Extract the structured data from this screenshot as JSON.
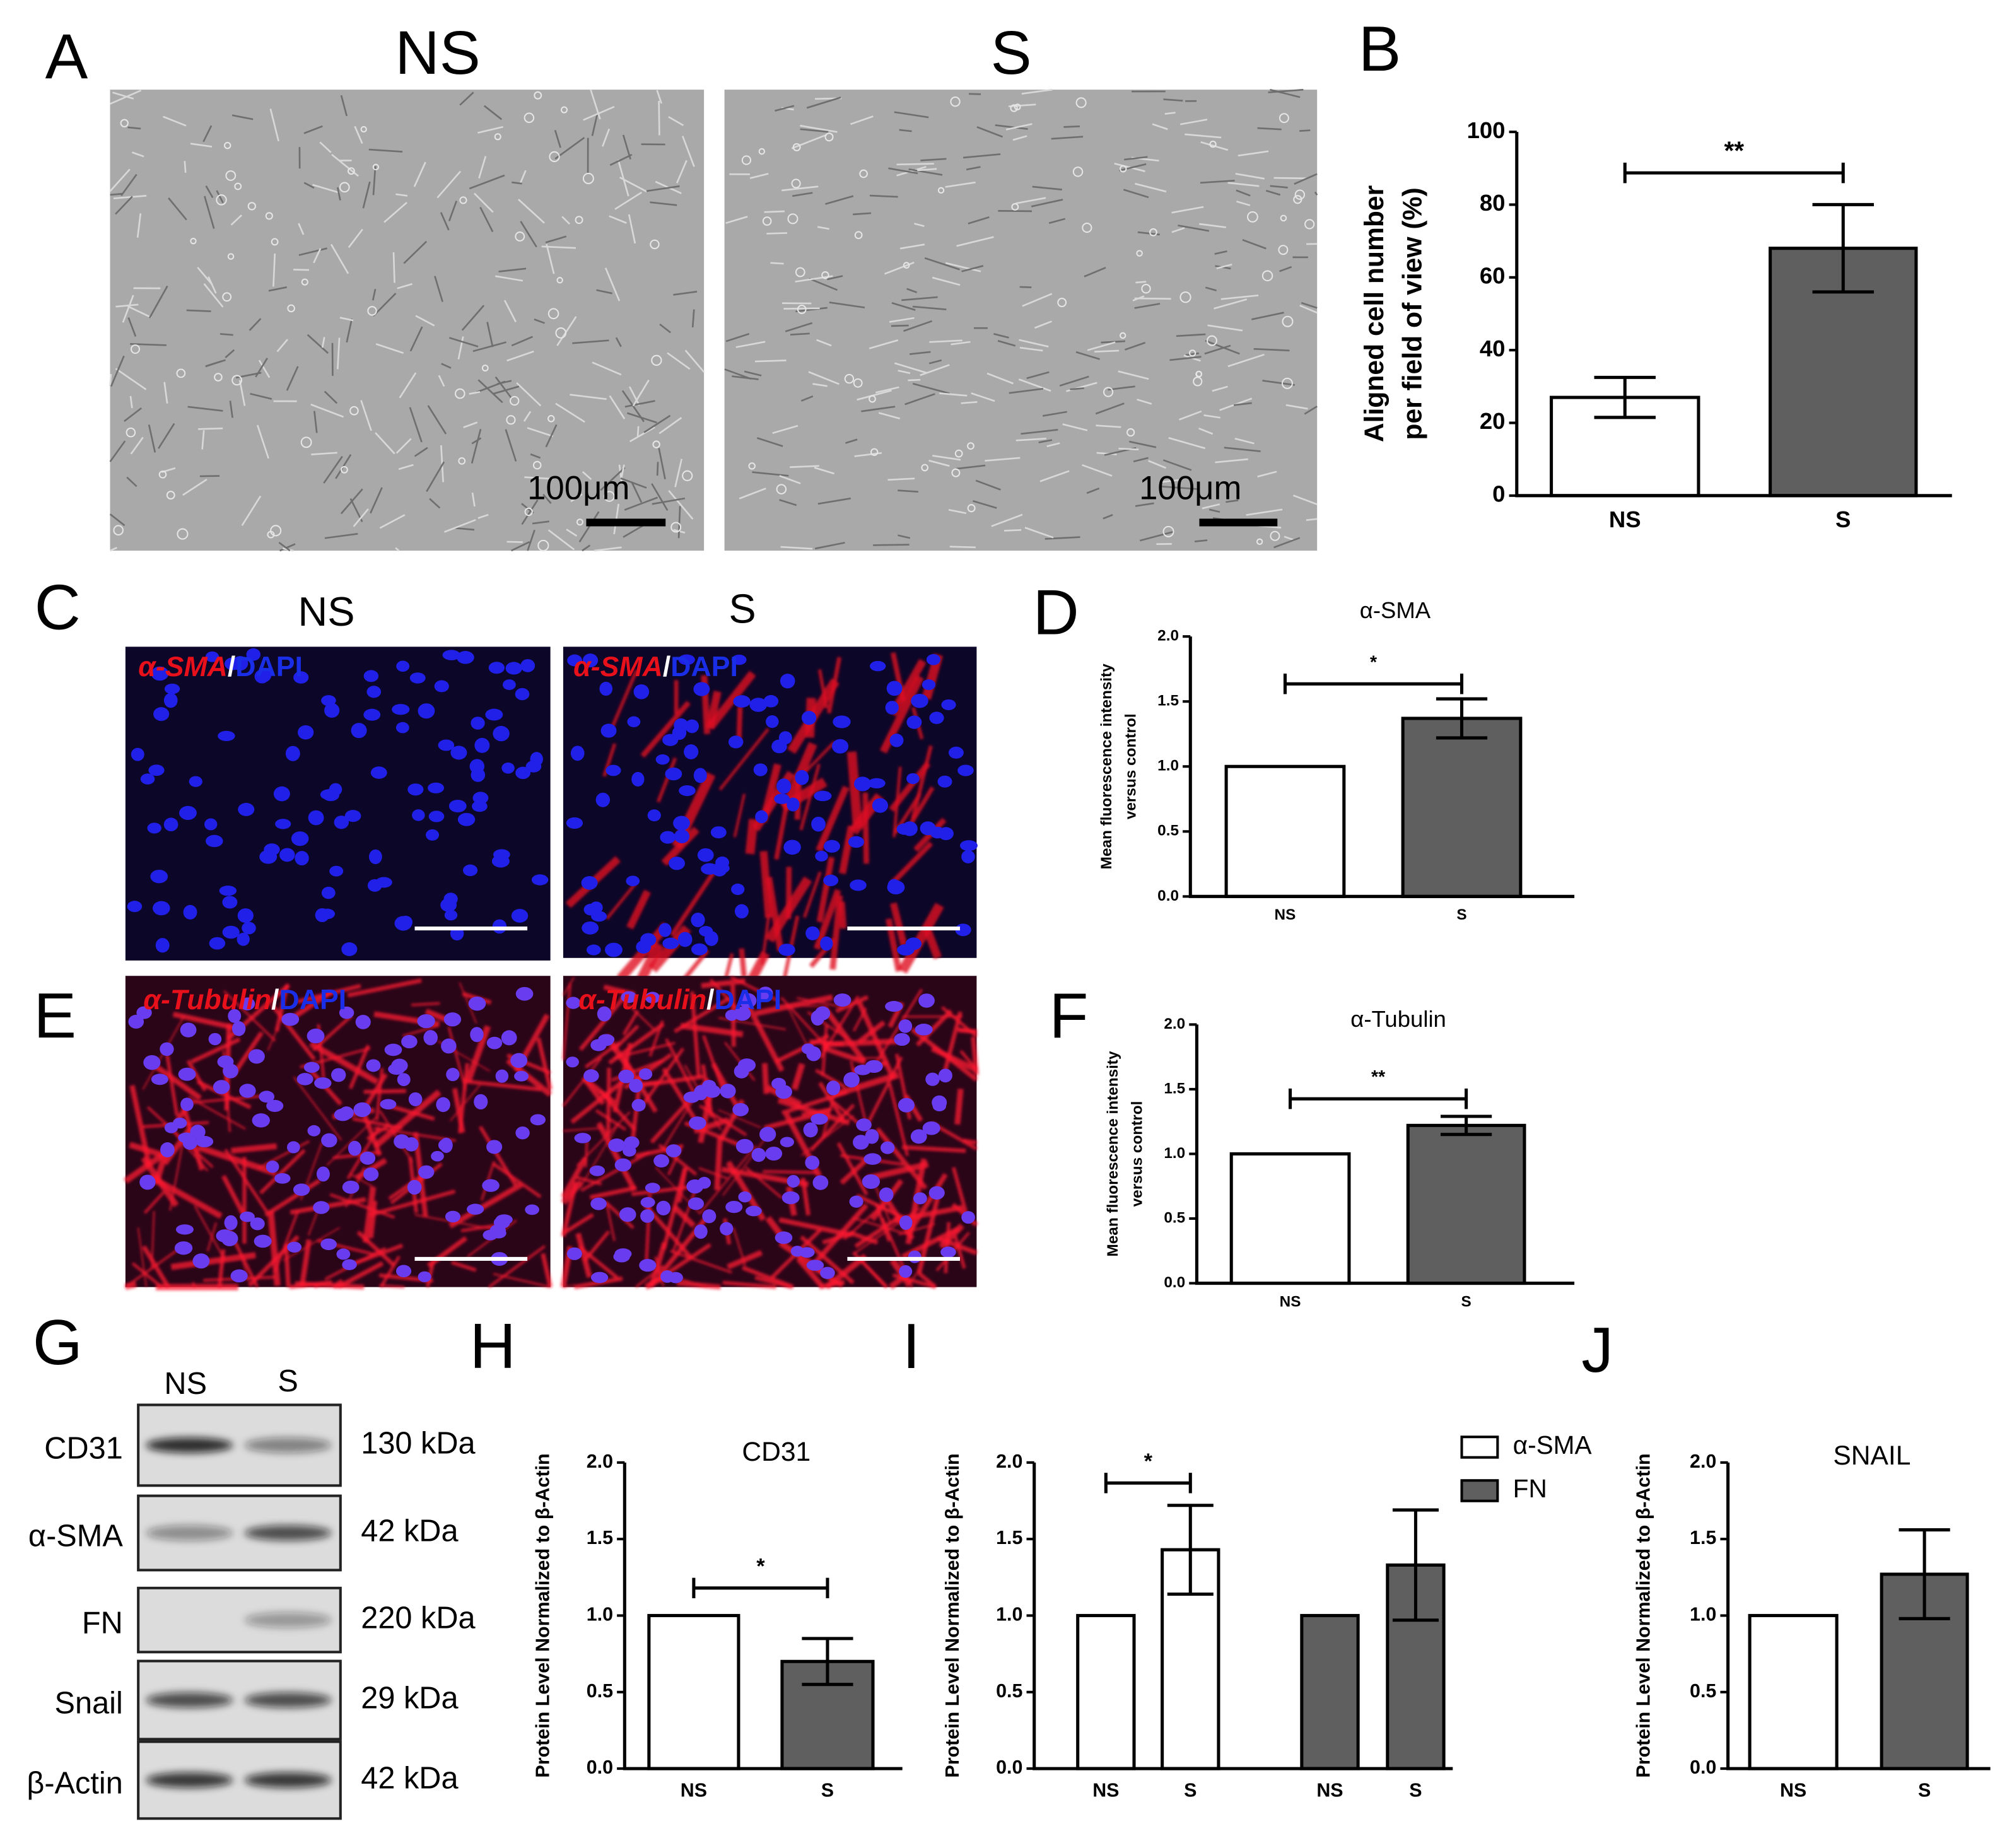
{
  "panel_labels": [
    "A",
    "B",
    "C",
    "D",
    "E",
    "F",
    "G",
    "H",
    "I",
    "J"
  ],
  "micrographs": {
    "A": {
      "titles": [
        "NS",
        "S"
      ],
      "scale": "100μm"
    },
    "C": {
      "titles": [
        "NS",
        "S"
      ],
      "stain": [
        "α-SMA",
        "/",
        "DAPI"
      ]
    },
    "E": {
      "stain": [
        "α-Tubulin",
        "/",
        "DAPI"
      ]
    }
  },
  "blot": {
    "lanes": [
      "NS",
      "S"
    ],
    "rows": [
      {
        "protein": "CD31",
        "size": "130 kDa"
      },
      {
        "protein": "α-SMA",
        "size": "42 kDa"
      },
      {
        "protein": "FN",
        "size": "220 kDa"
      },
      {
        "protein": "Snail",
        "size": "29 kDa"
      },
      {
        "protein": "β-Actin",
        "size": "42 kDa"
      }
    ]
  },
  "chart_data": [
    {
      "type": "bar",
      "categories": [
        "NS",
        "S"
      ],
      "values": [
        27,
        68
      ],
      "errors": [
        5.5,
        12
      ],
      "colors": [
        "#ffffff",
        "#5f5f5f"
      ],
      "ylabel": [
        "Aligned cell number",
        "per field of view (%)"
      ],
      "ylim": [
        0,
        100
      ],
      "yticks": [
        0,
        20,
        40,
        60,
        80,
        100
      ],
      "significance": "**"
    },
    {
      "type": "bar",
      "title": "α-SMA",
      "categories": [
        "NS",
        "S"
      ],
      "values": [
        1.0,
        1.37
      ],
      "errors": [
        null,
        0.15
      ],
      "colors": [
        "#ffffff",
        "#5f5f5f"
      ],
      "ylabel": [
        "Mean fluorescence intensity",
        "versus control"
      ],
      "ylim": [
        0,
        2
      ],
      "yticks": [
        {
          "value": 0,
          "label": "0.0"
        },
        {
          "value": 0.5,
          "label": "0.5"
        },
        {
          "value": 1,
          "label": "1.0"
        },
        {
          "value": 1.5,
          "label": "1.5"
        },
        {
          "value": 2,
          "label": "2.0"
        }
      ],
      "significance": "*"
    },
    {
      "type": "bar",
      "title": "α-Tubulin",
      "categories": [
        "NS",
        "S"
      ],
      "values": [
        1.0,
        1.22
      ],
      "errors": [
        null,
        0.07
      ],
      "colors": [
        "#ffffff",
        "#5f5f5f"
      ],
      "ylabel": [
        "Mean fluorescence intensity",
        "versus control"
      ],
      "ylim": [
        0,
        2
      ],
      "yticks": [
        {
          "value": 0,
          "label": "0.0"
        },
        {
          "value": 0.5,
          "label": "0.5"
        },
        {
          "value": 1,
          "label": "1.0"
        },
        {
          "value": 1.5,
          "label": "1.5"
        },
        {
          "value": 2,
          "label": "2.0"
        }
      ],
      "significance": "**"
    },
    {
      "type": "bar",
      "title": "CD31",
      "categories": [
        "NS",
        "S"
      ],
      "values": [
        1.0,
        0.7
      ],
      "errors": [
        null,
        0.15
      ],
      "colors": [
        "#ffffff",
        "#5f5f5f"
      ],
      "ylabel": [
        "Protein Level Normalized to β-Actin"
      ],
      "ylim": [
        0,
        2
      ],
      "yticks": [
        {
          "value": 0,
          "label": "0.0"
        },
        {
          "value": 0.5,
          "label": "0.5"
        },
        {
          "value": 1,
          "label": "1.0"
        },
        {
          "value": 1.5,
          "label": "1.5"
        },
        {
          "value": 2,
          "label": "2.0"
        }
      ],
      "significance": "*"
    },
    {
      "type": "bar",
      "categories": [
        "NS",
        "S",
        "NS",
        "S"
      ],
      "series": [
        {
          "name": "α-SMA",
          "color": "#ffffff",
          "values": [
            1.0,
            1.43,
            null,
            null
          ],
          "errors": [
            null,
            0.29,
            null,
            null
          ]
        },
        {
          "name": "FN",
          "color": "#5f5f5f",
          "values": [
            null,
            null,
            1.0,
            1.33
          ],
          "errors": [
            null,
            null,
            null,
            0.36
          ]
        }
      ],
      "ylabel": [
        "Protein Level Normalized to β-Actin"
      ],
      "ylim": [
        0,
        2
      ],
      "yticks": [
        {
          "value": 0,
          "label": "0.0"
        },
        {
          "value": 0.5,
          "label": "0.5"
        },
        {
          "value": 1,
          "label": "1.0"
        },
        {
          "value": 1.5,
          "label": "1.5"
        },
        {
          "value": 2,
          "label": "2.0"
        }
      ],
      "significance": "*",
      "legend": "upper right"
    },
    {
      "type": "bar",
      "title": "SNAIL",
      "categories": [
        "NS",
        "S"
      ],
      "values": [
        1.0,
        1.27
      ],
      "errors": [
        null,
        0.29
      ],
      "colors": [
        "#ffffff",
        "#5f5f5f"
      ],
      "ylabel": [
        "Protein Level Normalized to β-Actin"
      ],
      "ylim": [
        0,
        2
      ],
      "yticks": [
        {
          "value": 0,
          "label": "0.0"
        },
        {
          "value": 0.5,
          "label": "0.5"
        },
        {
          "value": 1,
          "label": "1.0"
        },
        {
          "value": 1.5,
          "label": "1.5"
        },
        {
          "value": 2,
          "label": "2.0"
        }
      ]
    }
  ]
}
